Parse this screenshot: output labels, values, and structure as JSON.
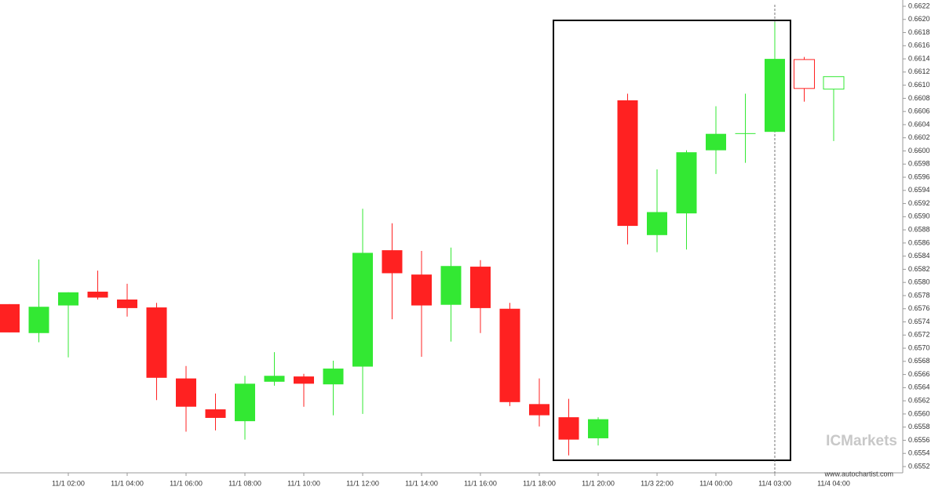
{
  "chart_data": {
    "type": "candlestick",
    "categories": [
      null,
      null,
      "11/1 02:00",
      null,
      "11/1 04:00",
      null,
      "11/1 06:00",
      null,
      "11/1 08:00",
      null,
      "11/1 10:00",
      null,
      "11/1 12:00",
      null,
      "11/1 14:00",
      null,
      "11/1 16:00",
      null,
      "11/1 18:00",
      null,
      "11/1 20:00",
      null,
      "11/3 22:00",
      null,
      "11/4 00:00",
      null,
      "11/4 03:00",
      null,
      "11/4 04:00"
    ],
    "open": [
      0.65767,
      0.65723,
      0.65765,
      0.65786,
      0.65774,
      0.65762,
      0.65654,
      0.65607,
      0.65589,
      0.65649,
      0.65657,
      0.65645,
      0.65672,
      0.65849,
      0.65812,
      0.65766,
      0.65824,
      0.6576,
      0.65615,
      0.65595,
      0.65563,
      0.66077,
      0.65872,
      0.65905,
      0.66001,
      0.66026,
      0.66029,
      0.66139,
      0.66094
    ],
    "high": [
      0.65767,
      0.65835,
      0.65785,
      0.65818,
      0.65798,
      0.65769,
      0.65673,
      0.65631,
      0.65658,
      0.65694,
      0.65661,
      0.65681,
      0.65912,
      0.6589,
      0.65848,
      0.65853,
      0.65834,
      0.65769,
      0.65654,
      0.65623,
      0.65595,
      0.66087,
      0.65972,
      0.66001,
      0.66068,
      0.66087,
      0.66196,
      0.66143,
      0.66113
    ],
    "low": [
      0.65724,
      0.65709,
      0.65686,
      0.65774,
      0.65748,
      0.65621,
      0.65573,
      0.65575,
      0.65561,
      0.65643,
      0.65611,
      0.65598,
      0.656,
      0.65744,
      0.65687,
      0.6571,
      0.65723,
      0.65612,
      0.65581,
      0.65537,
      0.65552,
      0.65858,
      0.65846,
      0.6585,
      0.65965,
      0.65982,
      0.66029,
      0.66075,
      0.66015
    ],
    "close": [
      0.65724,
      0.65763,
      0.65785,
      0.65777,
      0.65761,
      0.65655,
      0.65611,
      0.65594,
      0.65646,
      0.65658,
      0.65646,
      0.65669,
      0.65845,
      0.65814,
      0.65765,
      0.65825,
      0.65761,
      0.65618,
      0.65598,
      0.65561,
      0.65592,
      0.65886,
      0.65907,
      0.65998,
      0.66026,
      0.66027,
      0.6614,
      0.66095,
      0.66113
    ],
    "hollow": [
      false,
      false,
      false,
      false,
      false,
      false,
      false,
      false,
      false,
      false,
      false,
      false,
      false,
      false,
      false,
      false,
      false,
      false,
      false,
      false,
      false,
      false,
      false,
      false,
      false,
      false,
      false,
      true,
      true
    ],
    "up_color": "#33e833",
    "down_color": "#ff2121",
    "ylim": [
      0.6552,
      0.6622
    ],
    "yticks": [
      0.6552,
      0.6554,
      0.6556,
      0.6558,
      {
        "value": 0.656,
        "label": "0.6560"
      },
      0.6562,
      0.6564,
      0.6566,
      0.6568,
      {
        "value": 0.657,
        "label": "0.6570"
      },
      0.6572,
      0.6574,
      0.6576,
      0.6578,
      {
        "value": 0.658,
        "label": "0.6580"
      },
      0.6582,
      0.6584,
      0.6586,
      0.6588,
      {
        "value": 0.659,
        "label": "0.6590"
      },
      0.6592,
      0.6594,
      0.6596,
      0.6598,
      {
        "value": 0.66,
        "label": "0.6600"
      },
      0.6602,
      0.6604,
      0.6606,
      0.6608,
      {
        "value": 0.661,
        "label": "0.6610"
      },
      0.6612,
      0.6614,
      0.6616,
      0.6618,
      {
        "value": 0.662,
        "label": "0.6620"
      },
      0.6622
    ],
    "grid": false,
    "watermark": "ICMarkets",
    "source": "www.autochartist.com"
  }
}
